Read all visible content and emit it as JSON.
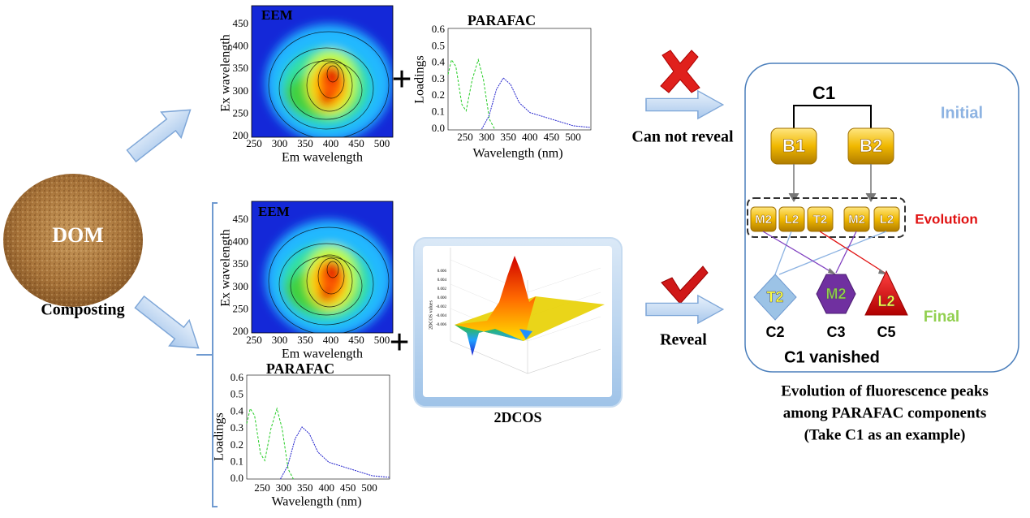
{
  "source": {
    "label": "DOM",
    "process": "Composting"
  },
  "top": {
    "eem": {
      "title": "EEM",
      "y_label": "Ex wavelength",
      "x_label": "Em wavelength",
      "yticks": [
        450,
        400,
        350,
        300,
        250,
        200
      ],
      "xticks": [
        250,
        300,
        350,
        400,
        450,
        500
      ]
    },
    "parafac": {
      "title": "PARAFAC",
      "y_label": "Loadings",
      "x_label": "Wavelength (nm)",
      "yticks": [
        "0.6",
        "0.5",
        "0.4",
        "0.3",
        "0.2",
        "0.1",
        "0.0"
      ],
      "xticks": [
        250,
        300,
        350,
        400,
        450,
        500
      ]
    },
    "result": "Can not reveal"
  },
  "bottom": {
    "eem": {
      "title": "EEM",
      "y_label": "Ex wavelength",
      "x_label": "Em wavelength",
      "yticks": [
        450,
        400,
        350,
        300,
        250,
        200
      ],
      "xticks": [
        250,
        300,
        350,
        400,
        450,
        500
      ]
    },
    "parafac": {
      "title": "PARAFAC",
      "y_label": "Loadings",
      "x_label": "Wavelength (nm)",
      "yticks": [
        "0.6",
        "0.5",
        "0.4",
        "0.3",
        "0.2",
        "0.1",
        "0.0"
      ],
      "xticks": [
        250,
        300,
        350,
        400,
        450,
        500
      ]
    },
    "dcos": {
      "title": "2DCOS",
      "z_label": "2DCOS values",
      "zticks": [
        "0.006",
        "0.004",
        "0.002",
        "0.000",
        "-0.002",
        "-0.004",
        "-0.006"
      ]
    },
    "result": "Reveal"
  },
  "evolution": {
    "root": "C1",
    "initial_label": "Initial",
    "initial": [
      "B1",
      "B2"
    ],
    "evolution_label": "Evolution",
    "peaks": [
      "M2",
      "L2",
      "T2",
      "M2",
      "L2"
    ],
    "final_label": "Final",
    "final": [
      {
        "peak": "T2",
        "component": "C2"
      },
      {
        "peak": "M2",
        "component": "C3"
      },
      {
        "peak": "L2",
        "component": "C5"
      }
    ],
    "note": "C1 vanished",
    "caption": [
      "Evolution of fluorescence peaks",
      "among PARAFAC components",
      "(Take C1 as an example)"
    ]
  }
}
